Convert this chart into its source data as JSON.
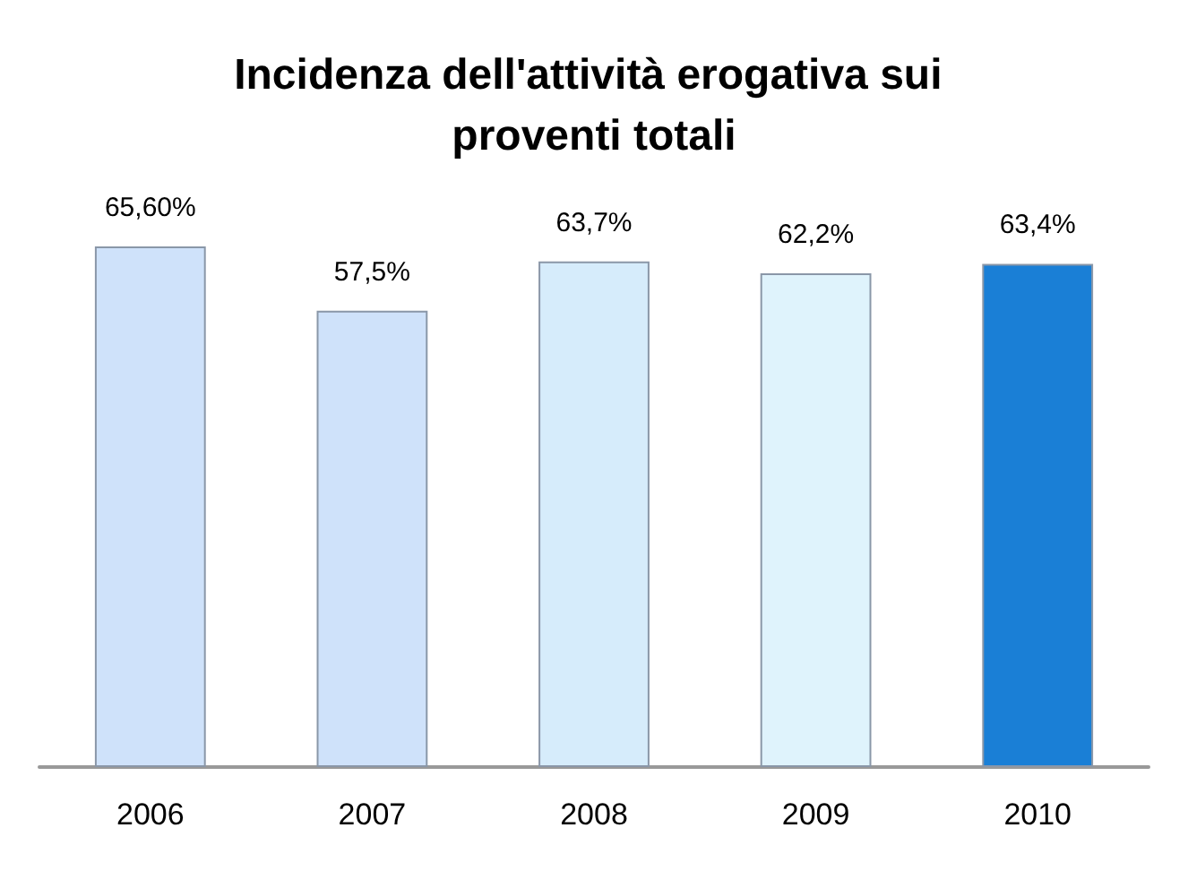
{
  "chart_data": {
    "type": "bar",
    "title": "Incidenza dell'attività erogativa sui proventi totali",
    "categories": [
      "2006",
      "2007",
      "2008",
      "2009",
      "2010"
    ],
    "values": [
      65.6,
      57.5,
      63.7,
      62.2,
      63.4
    ],
    "colors": [
      "#cfe2fa",
      "#cfe2fa",
      "#d6ecfb",
      "#dff3fc",
      "#1a7fd6"
    ],
    "value_labels": [
      "65,60%",
      "57,5%",
      "63,7%",
      "62,2%",
      "63,4%"
    ],
    "tick_labels": "x"
  }
}
